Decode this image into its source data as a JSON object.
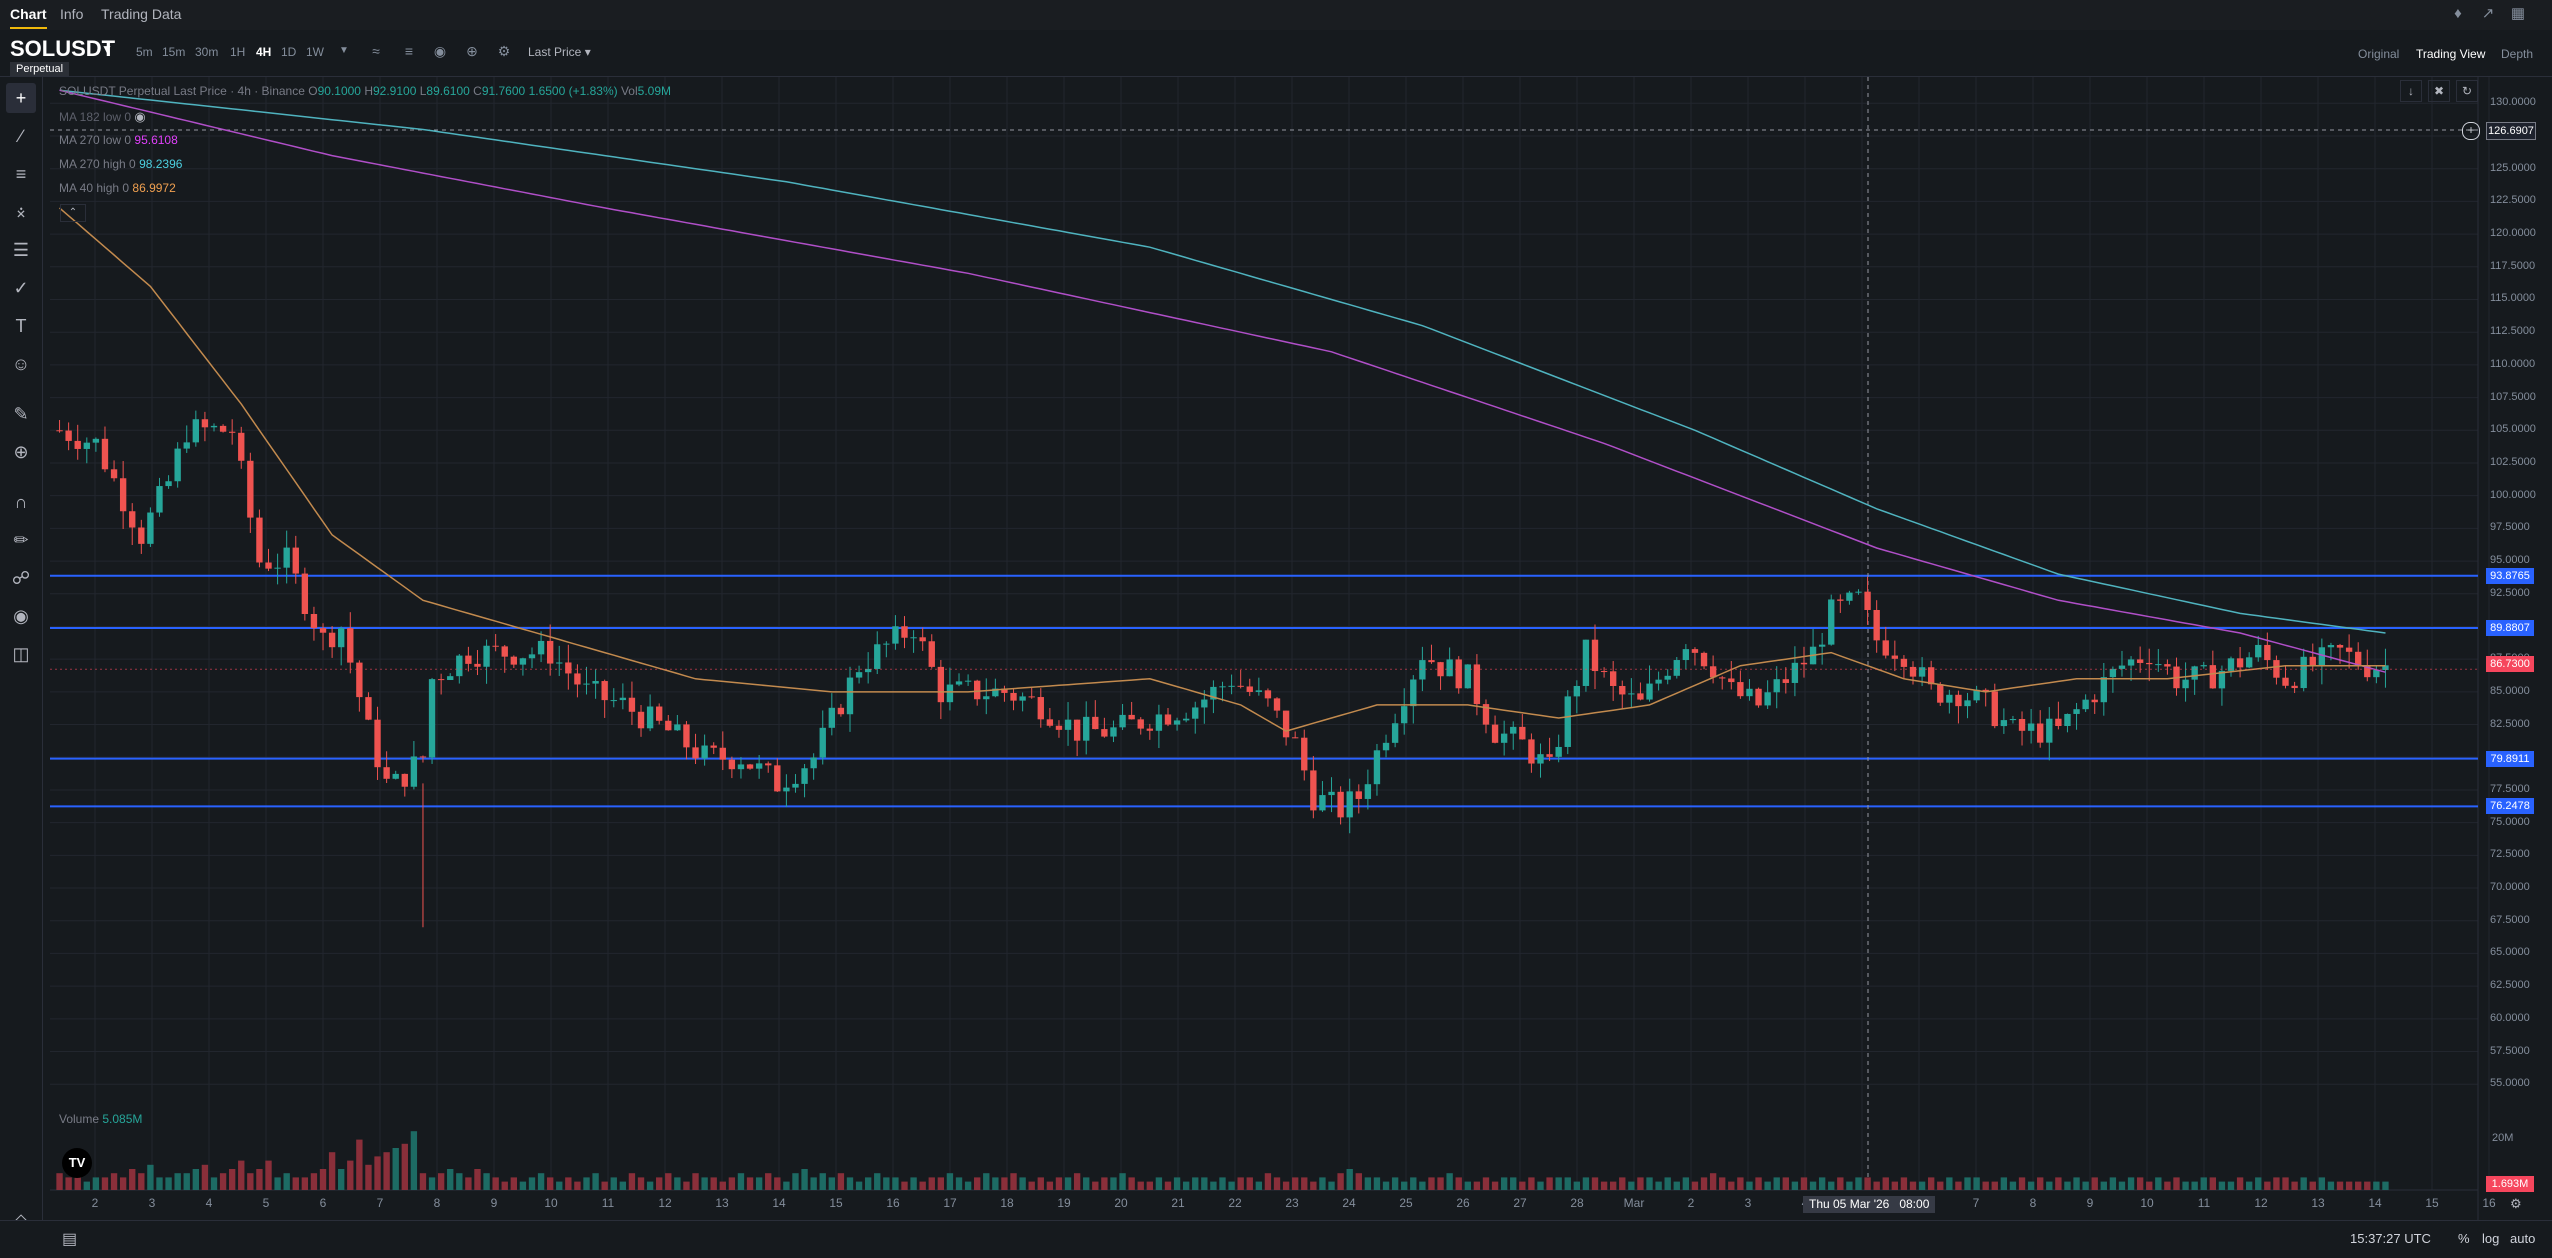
{
  "top_tabs": [
    {
      "label": "Chart",
      "active": true
    },
    {
      "label": "Info",
      "active": false
    },
    {
      "label": "Trading Data",
      "active": false
    }
  ],
  "symbol": {
    "name": "SOLUSDT",
    "type": "Perpetual"
  },
  "timeframes": [
    {
      "label": "5m"
    },
    {
      "label": "15m"
    },
    {
      "label": "30m"
    },
    {
      "label": "1H"
    },
    {
      "label": "1D"
    },
    {
      "label": "4H",
      "active": true
    },
    {
      "label": "1W"
    }
  ],
  "price_type": "Last Price",
  "views": [
    {
      "label": "Original"
    },
    {
      "label": "Trading View",
      "active": true
    },
    {
      "label": "Depth"
    }
  ],
  "ohlc": {
    "title": "SOLUSDT Perpetual Last Price · 4h · Binance",
    "o_label": "O",
    "o": "90.1000",
    "h_label": "H",
    "h": "92.9100",
    "l_label": "L",
    "l": "89.6100",
    "c_label": "C",
    "c": "91.7600",
    "change": "1.6500 (+1.83%)",
    "vol_label": "Vol",
    "vol": "5.09M"
  },
  "indicators": [
    {
      "label": "MA 182 low 0",
      "value": "",
      "color": "#787b86"
    },
    {
      "label": "MA 270 low 0",
      "value": "95.6108",
      "color": "#e040fb"
    },
    {
      "label": "MA 270 high 0",
      "value": "98.2396",
      "color": "#4dd0e1"
    },
    {
      "label": "MA 40 high 0",
      "value": "86.9972",
      "color": "#f0a050"
    }
  ],
  "volume_legend": {
    "label": "Volume",
    "value": "5.085M"
  },
  "colors": {
    "up": "#26a69a",
    "down": "#ef5350",
    "hline": "#2962ff",
    "ma270low": "#b04fc8",
    "ma270high": "#4fb3bf",
    "ma40": "#c28a4e"
  },
  "chart_data": {
    "type": "candlestick",
    "title": "SOLUSDT Perpetual Last Price · 4h · Binance",
    "ylim": [
      51.5,
      131.4
    ],
    "y_ticks": [
      "130.0000",
      "127.5000",
      "125.0000",
      "122.5000",
      "120.0000",
      "117.5000",
      "115.0000",
      "112.5000",
      "110.0000",
      "107.5000",
      "105.0000",
      "102.5000",
      "100.0000",
      "97.5000",
      "95.0000",
      "92.5000",
      "90.0000",
      "87.5000",
      "85.0000",
      "82.5000",
      "80.0000",
      "77.5000",
      "75.0000",
      "72.5000",
      "70.0000",
      "67.5000",
      "65.0000",
      "62.5000",
      "60.0000",
      "57.5000",
      "55.0000"
    ],
    "x_ticks": [
      "2",
      "3",
      "4",
      "5",
      "6",
      "7",
      "8",
      "9",
      "10",
      "11",
      "12",
      "13",
      "14",
      "15",
      "16",
      "17",
      "18",
      "19",
      "20",
      "21",
      "22",
      "23",
      "24",
      "25",
      "26",
      "27",
      "28",
      "Mar",
      "2",
      "3",
      "4",
      "5",
      "6",
      "7",
      "8",
      "9",
      "10",
      "11",
      "12",
      "13",
      "14",
      "15",
      "16"
    ],
    "horizontal_lines": [
      {
        "value": 93.8765,
        "label": "93.8765"
      },
      {
        "value": 89.8807,
        "label": "89.8807"
      },
      {
        "value": 79.8911,
        "label": "79.8911"
      },
      {
        "value": 76.2478,
        "label": "76.2478"
      }
    ],
    "crosshair": {
      "price_label": "126.6907",
      "time_label": "Thu 05 Mar '26   08:00"
    },
    "last_price": "86.7300",
    "volume_scale_label": "20M",
    "last_volume": "1.693M",
    "close_path": [
      [
        0,
        105
      ],
      [
        4,
        104
      ],
      [
        9,
        97
      ],
      [
        12,
        101
      ],
      [
        14,
        105
      ],
      [
        17,
        105
      ],
      [
        19,
        105
      ],
      [
        22,
        95
      ],
      [
        25,
        95
      ],
      [
        29,
        89
      ],
      [
        31,
        90
      ],
      [
        34,
        82
      ],
      [
        36,
        78
      ],
      [
        37,
        78
      ],
      [
        40,
        80
      ],
      [
        41,
        86
      ],
      [
        45,
        88
      ],
      [
        49,
        88
      ],
      [
        54,
        88
      ],
      [
        58,
        85
      ],
      [
        62,
        84
      ],
      [
        67,
        82
      ],
      [
        71,
        80
      ],
      [
        75,
        80
      ],
      [
        79,
        78
      ],
      [
        83,
        80
      ],
      [
        88,
        87
      ],
      [
        92,
        89
      ],
      [
        94,
        90
      ],
      [
        97,
        85
      ],
      [
        101,
        85
      ],
      [
        104,
        85
      ],
      [
        108,
        84
      ],
      [
        112,
        82
      ],
      [
        116,
        82
      ],
      [
        120,
        83
      ],
      [
        125,
        84
      ],
      [
        129,
        86
      ],
      [
        133,
        84
      ],
      [
        136,
        81
      ],
      [
        138,
        77
      ],
      [
        141,
        76
      ],
      [
        143,
        77
      ],
      [
        146,
        82
      ],
      [
        148,
        85
      ],
      [
        150,
        88
      ],
      [
        152,
        87
      ],
      [
        155,
        86
      ],
      [
        158,
        82
      ],
      [
        161,
        81
      ],
      [
        164,
        79
      ],
      [
        166,
        84
      ],
      [
        168,
        88
      ],
      [
        171,
        85
      ],
      [
        174,
        84
      ],
      [
        176,
        86
      ],
      [
        179,
        89
      ],
      [
        182,
        87
      ],
      [
        184,
        85
      ],
      [
        187,
        84
      ],
      [
        190,
        86
      ],
      [
        193,
        88
      ],
      [
        195,
        91
      ],
      [
        198,
        92
      ],
      [
        200,
        89
      ],
      [
        203,
        88
      ],
      [
        206,
        85
      ],
      [
        209,
        85
      ],
      [
        212,
        84
      ],
      [
        215,
        82
      ],
      [
        218,
        82
      ],
      [
        220,
        82
      ],
      [
        224,
        85
      ],
      [
        227,
        87
      ],
      [
        230,
        88
      ],
      [
        233,
        86
      ],
      [
        236,
        86
      ],
      [
        239,
        87
      ],
      [
        242,
        88
      ],
      [
        245,
        86
      ],
      [
        248,
        87
      ],
      [
        251,
        88
      ],
      [
        254,
        87
      ],
      [
        256,
        87
      ]
    ],
    "ma270_high_path": [
      [
        0,
        131
      ],
      [
        40,
        128
      ],
      [
        80,
        124
      ],
      [
        120,
        119
      ],
      [
        150,
        113
      ],
      [
        180,
        105
      ],
      [
        200,
        99
      ],
      [
        220,
        94
      ],
      [
        240,
        91
      ],
      [
        256,
        89.5
      ]
    ],
    "ma270_low_path": [
      [
        0,
        131
      ],
      [
        30,
        126
      ],
      [
        60,
        122
      ],
      [
        100,
        117
      ],
      [
        140,
        111
      ],
      [
        170,
        104
      ],
      [
        200,
        96
      ],
      [
        220,
        92
      ],
      [
        240,
        89.5
      ],
      [
        256,
        86.5
      ]
    ],
    "ma40_path": [
      [
        0,
        122
      ],
      [
        10,
        116
      ],
      [
        20,
        107
      ],
      [
        30,
        97
      ],
      [
        40,
        92
      ],
      [
        55,
        89
      ],
      [
        70,
        86
      ],
      [
        85,
        85
      ],
      [
        100,
        85
      ],
      [
        120,
        86
      ],
      [
        130,
        84
      ],
      [
        135,
        82
      ],
      [
        145,
        84
      ],
      [
        155,
        84
      ],
      [
        165,
        83
      ],
      [
        175,
        84
      ],
      [
        185,
        87
      ],
      [
        195,
        88
      ],
      [
        203,
        86
      ],
      [
        212,
        85
      ],
      [
        222,
        86
      ],
      [
        232,
        86
      ],
      [
        245,
        87
      ],
      [
        256,
        87
      ]
    ],
    "volume_values": [
      4,
      3,
      3,
      2,
      3,
      3,
      4,
      3,
      5,
      4,
      6,
      3,
      3,
      4,
      4,
      5,
      6,
      3,
      4,
      5,
      7,
      4,
      5,
      7,
      3,
      4,
      3,
      3,
      4,
      5,
      9,
      5,
      7,
      12,
      6,
      8,
      9,
      10,
      11,
      14,
      4,
      3,
      4,
      5,
      4,
      3,
      5,
      4,
      3,
      2,
      3,
      2,
      3,
      4,
      3,
      2,
      3,
      2,
      3,
      4,
      2,
      3,
      2,
      4,
      3,
      2,
      3,
      4,
      3,
      2,
      4,
      3,
      3,
      2,
      3,
      4,
      3,
      3,
      4,
      3,
      2,
      4,
      5,
      3,
      4,
      3,
      4,
      3,
      2,
      3,
      4,
      3,
      3,
      2,
      3,
      2,
      3,
      3,
      4,
      3,
      2,
      3,
      4,
      3,
      3,
      4,
      3,
      2,
      3,
      2,
      3,
      3,
      4,
      3,
      2,
      3,
      3,
      4,
      3,
      2,
      2,
      3,
      2,
      3,
      2,
      3,
      3,
      2,
      3,
      2,
      3,
      3,
      2,
      4,
      3,
      2,
      3,
      3,
      2,
      3,
      2,
      4,
      5,
      4,
      3,
      3,
      2,
      3,
      2,
      3,
      2,
      3,
      3,
      4,
      3,
      2,
      2,
      3,
      2,
      3,
      3,
      2,
      3,
      2,
      3,
      3,
      3,
      2,
      3,
      3,
      2,
      2,
      3,
      2,
      3,
      3,
      2,
      3,
      2,
      3,
      2,
      3,
      4,
      3,
      2,
      3,
      2,
      3,
      2,
      3,
      3,
      2,
      3,
      2,
      3,
      2,
      3,
      2,
      3,
      3,
      2,
      3,
      2,
      3,
      2,
      2,
      3,
      2,
      3,
      2,
      3,
      3,
      2,
      2,
      3,
      2,
      3,
      2,
      3,
      2,
      3,
      2,
      3,
      2,
      3,
      2,
      3,
      2,
      3,
      3,
      2,
      3,
      2,
      3,
      2,
      2,
      3,
      3,
      2,
      2,
      3,
      2,
      3,
      2,
      3,
      3,
      2,
      3,
      2,
      3,
      2
    ]
  },
  "status": {
    "time": "15:37:27 UTC",
    "pct": "%",
    "log": "log",
    "auto": "auto"
  }
}
